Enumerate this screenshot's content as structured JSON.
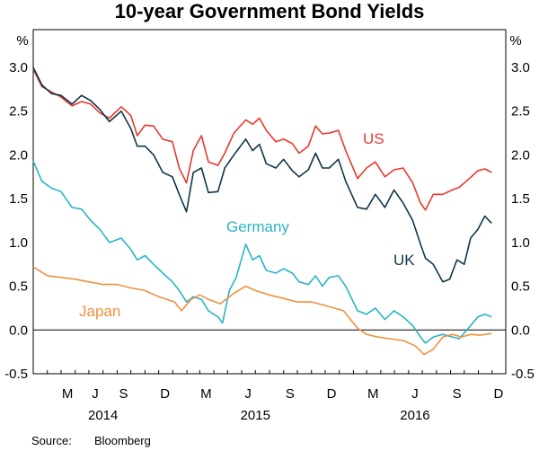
{
  "chart_data": {
    "type": "line",
    "title": "10-year Government Bond Yields",
    "unit_left": "%",
    "unit_right": "%",
    "source_label": "Source:",
    "source_value": "Bloomberg",
    "ylim": [
      -0.5,
      3.0
    ],
    "yticks": [
      "3.0",
      "2.5",
      "2.0",
      "1.5",
      "1.0",
      "0.5",
      "0.0",
      "-0.5"
    ],
    "ytick_values": [
      3.0,
      2.5,
      2.0,
      1.5,
      1.0,
      0.5,
      0.0,
      -0.5
    ],
    "xlim": [
      "2014-03-01",
      "2016-12-31"
    ],
    "month_ticks": [
      {
        "label": "M",
        "date": "2014-05-15"
      },
      {
        "label": "J",
        "date": "2014-07-15"
      },
      {
        "label": "S",
        "date": "2014-09-15"
      },
      {
        "label": "D",
        "date": "2014-12-15"
      },
      {
        "label": "M",
        "date": "2015-03-15"
      },
      {
        "label": "J",
        "date": "2015-06-15"
      },
      {
        "label": "S",
        "date": "2015-09-15"
      },
      {
        "label": "D",
        "date": "2015-12-15"
      },
      {
        "label": "M",
        "date": "2016-03-15"
      },
      {
        "label": "J",
        "date": "2016-06-15"
      },
      {
        "label": "S",
        "date": "2016-09-15"
      },
      {
        "label": "D",
        "date": "2016-12-15"
      }
    ],
    "year_ticks": [
      {
        "label": "2014",
        "date": "2014-08-01"
      },
      {
        "label": "2015",
        "date": "2015-07-01"
      },
      {
        "label": "2016",
        "date": "2016-06-15"
      }
    ],
    "series": [
      {
        "name": "US",
        "color": "#e8392b",
        "points": [
          [
            "2014-03-01",
            2.98
          ],
          [
            "2014-03-20",
            2.78
          ],
          [
            "2014-04-10",
            2.72
          ],
          [
            "2014-05-01",
            2.66
          ],
          [
            "2014-05-25",
            2.56
          ],
          [
            "2014-06-15",
            2.61
          ],
          [
            "2014-07-05",
            2.58
          ],
          [
            "2014-07-25",
            2.48
          ],
          [
            "2014-08-15",
            2.42
          ],
          [
            "2014-09-10",
            2.55
          ],
          [
            "2014-10-01",
            2.45
          ],
          [
            "2014-10-15",
            2.22
          ],
          [
            "2014-11-01",
            2.34
          ],
          [
            "2014-11-20",
            2.33
          ],
          [
            "2014-12-10",
            2.18
          ],
          [
            "2014-12-31",
            2.15
          ],
          [
            "2015-01-15",
            1.85
          ],
          [
            "2015-01-31",
            1.68
          ],
          [
            "2015-02-15",
            2.05
          ],
          [
            "2015-03-05",
            2.22
          ],
          [
            "2015-03-20",
            1.92
          ],
          [
            "2015-04-10",
            1.88
          ],
          [
            "2015-04-25",
            2.02
          ],
          [
            "2015-05-15",
            2.25
          ],
          [
            "2015-06-10",
            2.4
          ],
          [
            "2015-06-25",
            2.35
          ],
          [
            "2015-07-10",
            2.42
          ],
          [
            "2015-07-25",
            2.28
          ],
          [
            "2015-08-15",
            2.15
          ],
          [
            "2015-09-01",
            2.18
          ],
          [
            "2015-09-20",
            2.13
          ],
          [
            "2015-10-05",
            2.02
          ],
          [
            "2015-10-25",
            2.1
          ],
          [
            "2015-11-10",
            2.33
          ],
          [
            "2015-11-25",
            2.24
          ],
          [
            "2015-12-10",
            2.25
          ],
          [
            "2015-12-30",
            2.28
          ],
          [
            "2016-01-15",
            2.05
          ],
          [
            "2016-02-10",
            1.73
          ],
          [
            "2016-03-01",
            1.85
          ],
          [
            "2016-03-20",
            1.92
          ],
          [
            "2016-04-10",
            1.75
          ],
          [
            "2016-04-30",
            1.83
          ],
          [
            "2016-05-20",
            1.85
          ],
          [
            "2016-06-10",
            1.68
          ],
          [
            "2016-06-27",
            1.45
          ],
          [
            "2016-07-08",
            1.37
          ],
          [
            "2016-07-25",
            1.55
          ],
          [
            "2016-08-15",
            1.55
          ],
          [
            "2016-09-05",
            1.6
          ],
          [
            "2016-09-20",
            1.63
          ],
          [
            "2016-10-10",
            1.72
          ],
          [
            "2016-10-31",
            1.82
          ],
          [
            "2016-11-15",
            1.84
          ],
          [
            "2016-11-30",
            1.8
          ]
        ]
      },
      {
        "name": "UK",
        "color": "#0f3648",
        "points": [
          [
            "2014-03-01",
            3.0
          ],
          [
            "2014-03-20",
            2.8
          ],
          [
            "2014-04-10",
            2.7
          ],
          [
            "2014-05-01",
            2.68
          ],
          [
            "2014-05-25",
            2.58
          ],
          [
            "2014-06-15",
            2.68
          ],
          [
            "2014-07-05",
            2.62
          ],
          [
            "2014-07-25",
            2.52
          ],
          [
            "2014-08-15",
            2.38
          ],
          [
            "2014-09-10",
            2.5
          ],
          [
            "2014-10-01",
            2.3
          ],
          [
            "2014-10-15",
            2.1
          ],
          [
            "2014-11-01",
            2.1
          ],
          [
            "2014-11-20",
            2.0
          ],
          [
            "2014-12-10",
            1.8
          ],
          [
            "2014-12-31",
            1.75
          ],
          [
            "2015-01-15",
            1.55
          ],
          [
            "2015-01-31",
            1.35
          ],
          [
            "2015-02-15",
            1.8
          ],
          [
            "2015-03-05",
            1.85
          ],
          [
            "2015-03-20",
            1.57
          ],
          [
            "2015-04-10",
            1.58
          ],
          [
            "2015-04-25",
            1.85
          ],
          [
            "2015-05-15",
            2.0
          ],
          [
            "2015-06-10",
            2.18
          ],
          [
            "2015-06-25",
            2.05
          ],
          [
            "2015-07-10",
            2.12
          ],
          [
            "2015-07-25",
            1.9
          ],
          [
            "2015-08-15",
            1.85
          ],
          [
            "2015-09-01",
            1.95
          ],
          [
            "2015-09-20",
            1.82
          ],
          [
            "2015-10-05",
            1.75
          ],
          [
            "2015-10-25",
            1.83
          ],
          [
            "2015-11-10",
            2.02
          ],
          [
            "2015-11-25",
            1.85
          ],
          [
            "2015-12-10",
            1.85
          ],
          [
            "2015-12-30",
            1.95
          ],
          [
            "2016-01-15",
            1.7
          ],
          [
            "2016-02-10",
            1.4
          ],
          [
            "2016-03-01",
            1.38
          ],
          [
            "2016-03-20",
            1.55
          ],
          [
            "2016-04-10",
            1.4
          ],
          [
            "2016-04-30",
            1.6
          ],
          [
            "2016-05-20",
            1.45
          ],
          [
            "2016-06-10",
            1.25
          ],
          [
            "2016-06-27",
            0.98
          ],
          [
            "2016-07-08",
            0.82
          ],
          [
            "2016-07-25",
            0.75
          ],
          [
            "2016-08-15",
            0.55
          ],
          [
            "2016-08-30",
            0.58
          ],
          [
            "2016-09-15",
            0.8
          ],
          [
            "2016-10-01",
            0.75
          ],
          [
            "2016-10-15",
            1.05
          ],
          [
            "2016-10-31",
            1.15
          ],
          [
            "2016-11-15",
            1.3
          ],
          [
            "2016-11-30",
            1.22
          ]
        ]
      },
      {
        "name": "Germany",
        "color": "#29b5c4",
        "points": [
          [
            "2014-03-01",
            1.93
          ],
          [
            "2014-03-20",
            1.7
          ],
          [
            "2014-04-10",
            1.62
          ],
          [
            "2014-05-01",
            1.58
          ],
          [
            "2014-05-25",
            1.4
          ],
          [
            "2014-06-15",
            1.38
          ],
          [
            "2014-07-05",
            1.25
          ],
          [
            "2014-07-25",
            1.15
          ],
          [
            "2014-08-15",
            1.0
          ],
          [
            "2014-09-10",
            1.05
          ],
          [
            "2014-10-01",
            0.92
          ],
          [
            "2014-10-15",
            0.8
          ],
          [
            "2014-11-01",
            0.85
          ],
          [
            "2014-11-20",
            0.75
          ],
          [
            "2014-12-10",
            0.65
          ],
          [
            "2014-12-31",
            0.55
          ],
          [
            "2015-01-15",
            0.45
          ],
          [
            "2015-01-31",
            0.32
          ],
          [
            "2015-02-15",
            0.38
          ],
          [
            "2015-03-05",
            0.35
          ],
          [
            "2015-03-20",
            0.22
          ],
          [
            "2015-04-10",
            0.15
          ],
          [
            "2015-04-20",
            0.08
          ],
          [
            "2015-05-05",
            0.45
          ],
          [
            "2015-05-20",
            0.6
          ],
          [
            "2015-06-10",
            0.98
          ],
          [
            "2015-06-25",
            0.8
          ],
          [
            "2015-07-10",
            0.85
          ],
          [
            "2015-07-25",
            0.68
          ],
          [
            "2015-08-15",
            0.65
          ],
          [
            "2015-09-01",
            0.7
          ],
          [
            "2015-09-20",
            0.65
          ],
          [
            "2015-10-05",
            0.55
          ],
          [
            "2015-10-25",
            0.52
          ],
          [
            "2015-11-10",
            0.62
          ],
          [
            "2015-11-25",
            0.5
          ],
          [
            "2015-12-10",
            0.6
          ],
          [
            "2015-12-30",
            0.62
          ],
          [
            "2016-01-15",
            0.5
          ],
          [
            "2016-02-10",
            0.22
          ],
          [
            "2016-03-01",
            0.18
          ],
          [
            "2016-03-20",
            0.25
          ],
          [
            "2016-04-10",
            0.12
          ],
          [
            "2016-04-30",
            0.22
          ],
          [
            "2016-05-20",
            0.15
          ],
          [
            "2016-06-10",
            0.05
          ],
          [
            "2016-06-27",
            -0.08
          ],
          [
            "2016-07-08",
            -0.15
          ],
          [
            "2016-07-25",
            -0.08
          ],
          [
            "2016-08-15",
            -0.05
          ],
          [
            "2016-09-05",
            -0.08
          ],
          [
            "2016-09-20",
            -0.1
          ],
          [
            "2016-10-10",
            0.02
          ],
          [
            "2016-10-31",
            0.15
          ],
          [
            "2016-11-15",
            0.18
          ],
          [
            "2016-11-30",
            0.15
          ]
        ]
      },
      {
        "name": "Japan",
        "color": "#f0913e",
        "points": [
          [
            "2014-03-01",
            0.72
          ],
          [
            "2014-04-01",
            0.62
          ],
          [
            "2014-05-01",
            0.6
          ],
          [
            "2014-06-01",
            0.58
          ],
          [
            "2014-07-01",
            0.55
          ],
          [
            "2014-08-01",
            0.52
          ],
          [
            "2014-09-01",
            0.52
          ],
          [
            "2014-10-01",
            0.48
          ],
          [
            "2014-11-01",
            0.45
          ],
          [
            "2014-12-01",
            0.38
          ],
          [
            "2015-01-05",
            0.32
          ],
          [
            "2015-01-20",
            0.22
          ],
          [
            "2015-02-10",
            0.35
          ],
          [
            "2015-03-01",
            0.4
          ],
          [
            "2015-03-20",
            0.35
          ],
          [
            "2015-04-15",
            0.3
          ],
          [
            "2015-05-15",
            0.42
          ],
          [
            "2015-06-10",
            0.5
          ],
          [
            "2015-07-01",
            0.45
          ],
          [
            "2015-08-01",
            0.4
          ],
          [
            "2015-09-01",
            0.36
          ],
          [
            "2015-10-01",
            0.32
          ],
          [
            "2015-11-01",
            0.32
          ],
          [
            "2015-12-01",
            0.28
          ],
          [
            "2016-01-10",
            0.22
          ],
          [
            "2016-02-10",
            0.02
          ],
          [
            "2016-03-01",
            -0.05
          ],
          [
            "2016-03-25",
            -0.08
          ],
          [
            "2016-04-20",
            -0.1
          ],
          [
            "2016-05-20",
            -0.12
          ],
          [
            "2016-06-15",
            -0.18
          ],
          [
            "2016-07-05",
            -0.28
          ],
          [
            "2016-07-25",
            -0.22
          ],
          [
            "2016-08-15",
            -0.08
          ],
          [
            "2016-09-05",
            -0.05
          ],
          [
            "2016-09-25",
            -0.08
          ],
          [
            "2016-10-15",
            -0.05
          ],
          [
            "2016-11-05",
            -0.06
          ],
          [
            "2016-11-30",
            -0.04
          ]
        ]
      }
    ]
  }
}
